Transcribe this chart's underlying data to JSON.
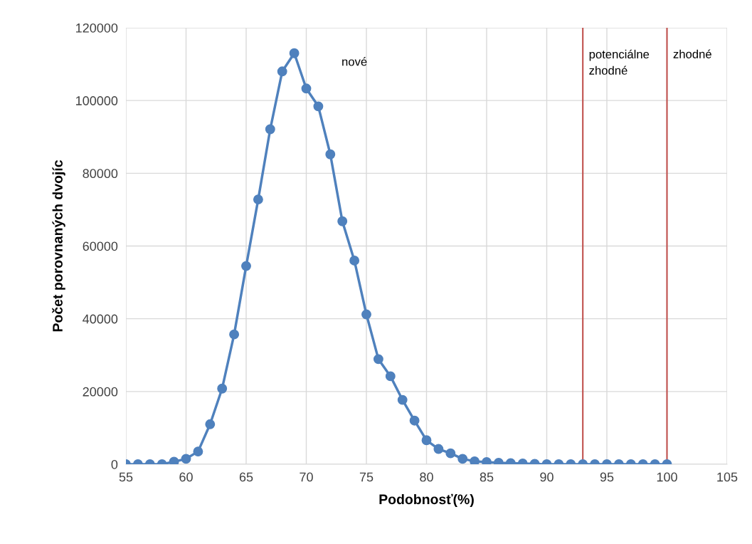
{
  "chart_data": {
    "type": "line",
    "xlabel": "Podobnosť(%)",
    "ylabel": "Počet porovnaných dvojíc",
    "x": [
      55,
      56,
      57,
      58,
      59,
      60,
      61,
      62,
      63,
      64,
      65,
      66,
      67,
      68,
      69,
      70,
      71,
      72,
      73,
      74,
      75,
      76,
      77,
      78,
      79,
      80,
      81,
      82,
      83,
      84,
      85,
      86,
      87,
      88,
      89,
      90,
      91,
      92,
      93,
      94,
      95,
      96,
      97,
      98,
      99,
      100
    ],
    "series": [
      {
        "color": "#4f81bd",
        "values": [
          0,
          0,
          0,
          0,
          700,
          1500,
          3500,
          11000,
          20800,
          35700,
          54500,
          72800,
          92100,
          108000,
          113000,
          103300,
          98400,
          85200,
          66800,
          56000,
          41200,
          28900,
          24200,
          17700,
          12000,
          6600,
          4200,
          3000,
          1500,
          800,
          600,
          400,
          300,
          200,
          100,
          0,
          0,
          0,
          0,
          0,
          0,
          0,
          0,
          0,
          0,
          0
        ]
      }
    ],
    "xlim": [
      55,
      105
    ],
    "xticks": [
      55,
      60,
      65,
      70,
      75,
      80,
      85,
      90,
      95,
      100,
      105
    ],
    "ylim": [
      0,
      120000
    ],
    "yticks": [
      0,
      20000,
      40000,
      60000,
      80000,
      100000,
      120000
    ],
    "grid": true,
    "marker": "circle",
    "line_style": "solid",
    "ref_lines": [
      {
        "axis": "x",
        "value": 93,
        "label": "potenciálne\nzhodné",
        "color": "#c0504d"
      },
      {
        "axis": "x",
        "value": 100,
        "label": "zhodné",
        "color": "#c0504d"
      }
    ],
    "annotations": [
      "nové"
    ]
  }
}
